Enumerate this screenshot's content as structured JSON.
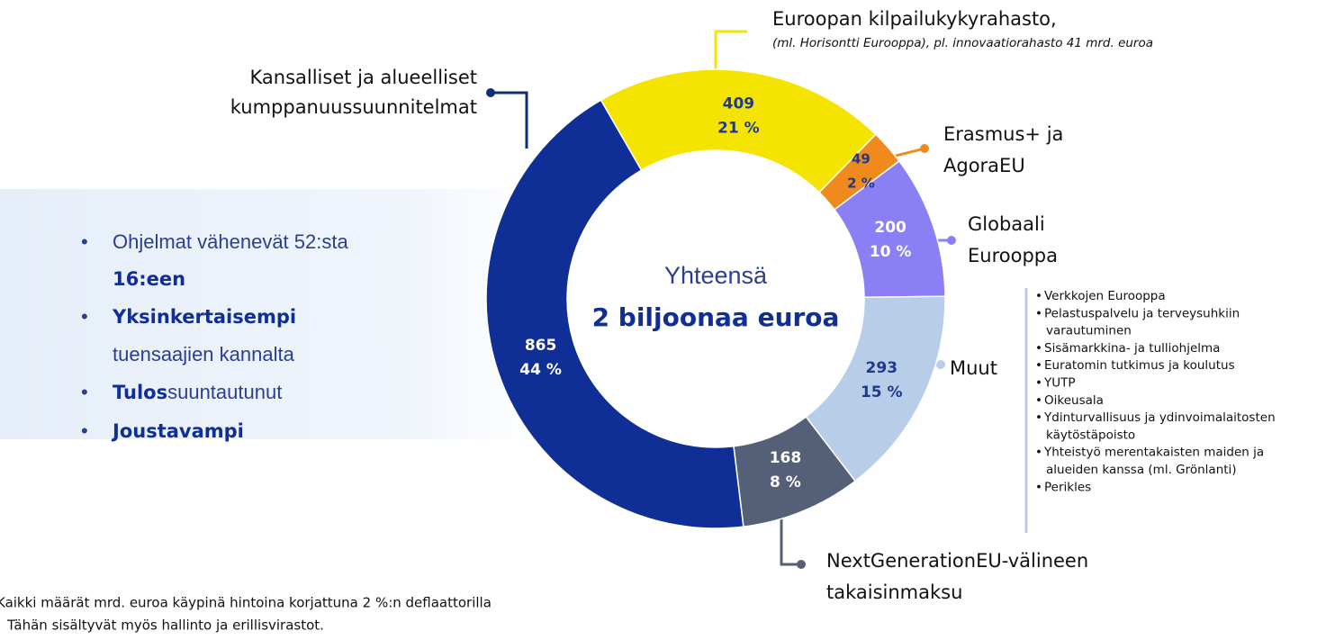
{
  "chart_data": {
    "type": "pie",
    "categories": [
      [
        "Euroopan kilpailukykyrahasto,"
      ],
      [
        "Erasmus+ ja",
        "AgoraEU"
      ],
      [
        "Globaali",
        "Eurooppa"
      ],
      [
        "Muut"
      ],
      [
        "NextGenerationEU-välineen",
        "takaisinmaksu"
      ],
      [
        "Kansalliset ja alueelliset",
        "kumppanuussuunnitelmat"
      ]
    ],
    "note": "(ml. Horisontti Eurooppa), pl. innovaatiorahasto 41 mrd. euroa",
    "values": [
      409,
      49,
      200,
      293,
      168,
      865
    ],
    "percentages": [
      21,
      2,
      10,
      15,
      8,
      44
    ],
    "percentage_labels": [
      "21 %",
      "2 %",
      "10 %",
      "15 %",
      "8 %",
      "44 %"
    ],
    "colors": [
      "#f5e400",
      "#f08a1c",
      "#8a7ff5",
      "#b8cde8",
      "#545f78",
      "#0f2f96"
    ],
    "label_colors": [
      "#1f3a8a",
      "#1f3a8a",
      "#ffffff",
      "#1f3a8a",
      "#ffffff",
      "#ffffff"
    ],
    "center": [
      "Yhteensä",
      "2 biljoonaa euroa"
    ],
    "other_items": [
      [
        "Verkkojen Eurooppa"
      ],
      [
        "Pelastuspalvelu ja terveysuhkiin",
        "varautuminen"
      ],
      [
        "Sisämarkkina- ja tulliohjelma"
      ],
      [
        "Euratomin tutkimus ja koulutus"
      ],
      [
        "YUTP"
      ],
      [
        "Oikeusala"
      ],
      [
        "Ydinturvallisuus ja ydinvoimalaitosten",
        "käytöstäpoisto"
      ],
      [
        "Yhteistyö merentakaisten maiden ja",
        "alueiden kanssa (ml. Grönlanti)"
      ],
      [
        "Perikles"
      ]
    ]
  },
  "bullets": [
    [
      {
        "text": "Ohjelmat vähenevät 52:sta"
      }
    ],
    [
      {
        "text": "16:een",
        "bold": true
      }
    ],
    [
      {
        "text": "Yksinkertaisempi",
        "bold": true
      }
    ],
    [
      {
        "text": "tuensaajien kannalta"
      }
    ],
    [
      {
        "text": "Tulos",
        "bold": true
      },
      {
        "text": "suuntautunut"
      }
    ],
    [
      {
        "text": "Joustavampi",
        "bold": true
      }
    ]
  ],
  "bullet_marks": [
    true,
    false,
    true,
    false,
    true,
    true
  ],
  "footnotes": [
    "Kaikki määrät mrd. euroa käypinä hintoina korjattuna 2 %:n deflaattorilla",
    "Tähän sisältyvät myös hallinto ja erillisvirastot."
  ]
}
